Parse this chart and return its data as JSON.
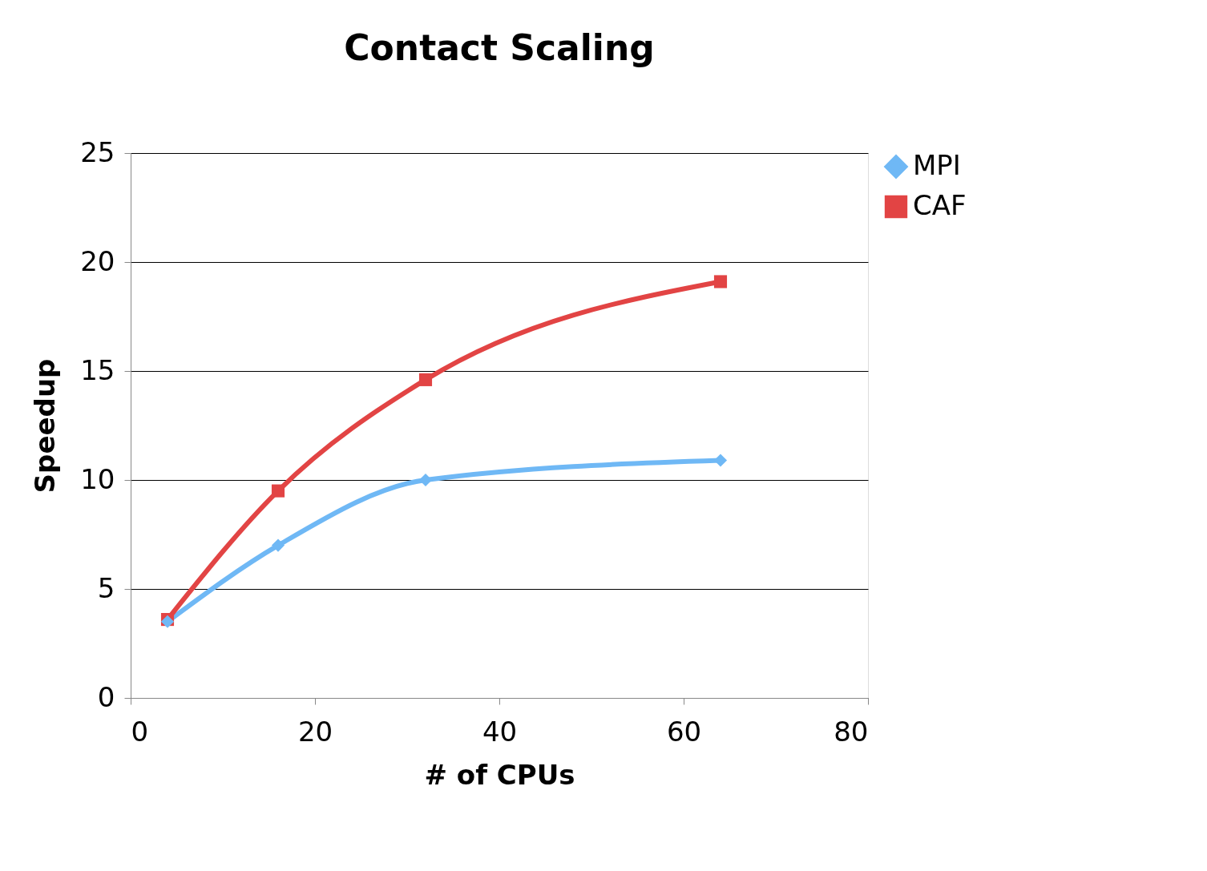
{
  "chart_data": {
    "type": "line",
    "title": "Contact Scaling",
    "xlabel": "# of CPUs",
    "ylabel": "Speedup",
    "x": [
      4,
      16,
      32,
      64
    ],
    "series": [
      {
        "name": "MPI",
        "color": "#6fb8f5",
        "marker": "diamond",
        "values": [
          3.5,
          7.0,
          10.0,
          10.9
        ]
      },
      {
        "name": "CAF",
        "color": "#e24444",
        "marker": "square",
        "values": [
          3.6,
          9.5,
          14.6,
          19.1
        ]
      }
    ],
    "xlim": [
      0,
      80
    ],
    "xticks": [
      0,
      20,
      40,
      60,
      80
    ],
    "ylim": [
      0,
      25
    ],
    "yticks": [
      0,
      5,
      10,
      15,
      20,
      25
    ],
    "grid": "y",
    "legend": "right",
    "line_style": "solid"
  }
}
